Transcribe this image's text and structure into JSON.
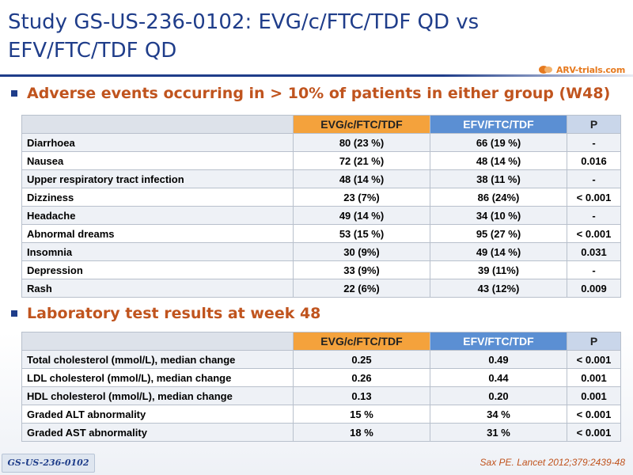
{
  "title": "Study GS-US-236-0102: EVG/c/FTC/TDF QD vs EFV/FTC/TDF QD",
  "logo_text": "ARV-trials.com",
  "colors": {
    "title": "#1f3d8a",
    "heading": "#c0541e",
    "evg_header": "#f4a23c",
    "efv_header": "#5b8fd3",
    "p_header": "#c9d6ea"
  },
  "section1": {
    "heading": "Adverse events occurring in > 10% of patients in either group (W48)",
    "headers": [
      "",
      "EVG/c/FTC/TDF",
      "EFV/FTC/TDF",
      "P"
    ],
    "rows": [
      [
        "Diarrhoea",
        "80 (23 %)",
        "66 (19 %)",
        "-"
      ],
      [
        "Nausea",
        "72 (21 %)",
        "48 (14 %)",
        "0.016"
      ],
      [
        "Upper respiratory tract infection",
        "48 (14 %)",
        "38 (11 %)",
        "-"
      ],
      [
        "Dizziness",
        "23 (7%)",
        "86 (24%)",
        "< 0.001"
      ],
      [
        "Headache",
        "49 (14 %)",
        "34 (10 %)",
        "-"
      ],
      [
        "Abnormal dreams",
        "53 (15 %)",
        "95 (27 %)",
        "< 0.001"
      ],
      [
        "Insomnia",
        "30 (9%)",
        "49 (14 %)",
        "0.031"
      ],
      [
        "Depression",
        "33 (9%)",
        "39 (11%)",
        "-"
      ],
      [
        "Rash",
        "22 (6%)",
        "43 (12%)",
        "0.009"
      ]
    ]
  },
  "section2": {
    "heading": "Laboratory test results at week 48",
    "headers": [
      "",
      "EVG/c/FTC/TDF",
      "EFV/FTC/TDF",
      "P"
    ],
    "rows": [
      [
        "Total cholesterol (mmol/L), median change",
        "0.25",
        "0.49",
        "< 0.001"
      ],
      [
        "LDL cholesterol (mmol/L), median change",
        "0.26",
        "0.44",
        "0.001"
      ],
      [
        "HDL cholesterol (mmol/L), median change",
        "0.13",
        "0.20",
        "0.001"
      ],
      [
        "Graded ALT abnormality",
        "15 %",
        "34 %",
        "< 0.001"
      ],
      [
        "Graded AST abnormality",
        "18 %",
        "31 %",
        "< 0.001"
      ]
    ]
  },
  "footer_tag": "GS-US-236-0102",
  "reference": "Sax PE. Lancet 2012;379:2439-48"
}
